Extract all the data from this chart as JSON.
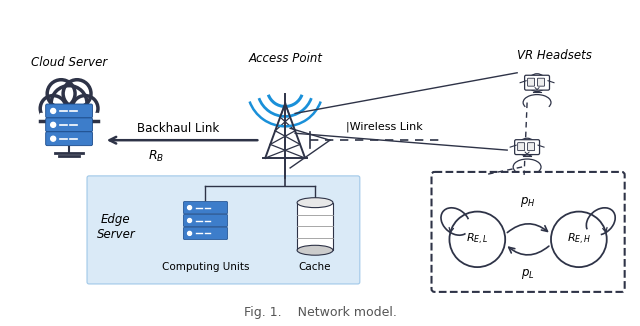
{
  "title": "Fig. 1.    Network model.",
  "cloud_server_label": "Cloud Server",
  "access_point_label": "Access Point",
  "vr_headsets_label": "VR Headsets",
  "edge_server_label": "Edge\nServer",
  "backhaul_link_label": "Backhaul Link",
  "wireless_link_label": "|Wireless Link",
  "r_b_label": "$R_B$",
  "computing_units_label": "Computing Units",
  "cache_label": "Cache",
  "p_h_label": "$p_H$",
  "p_l_label": "$p_L$",
  "r_el_label": "$R_{E,L}$",
  "r_eh_label": "$R_{E,H}$",
  "blue_color": "#3d7dca",
  "server_blue": "#3d7dca",
  "light_blue_bg": "#daeaf7",
  "dark_color": "#2e3347",
  "signal_color": "#1a90d9",
  "fig_width": 6.4,
  "fig_height": 3.26,
  "dpi": 100
}
